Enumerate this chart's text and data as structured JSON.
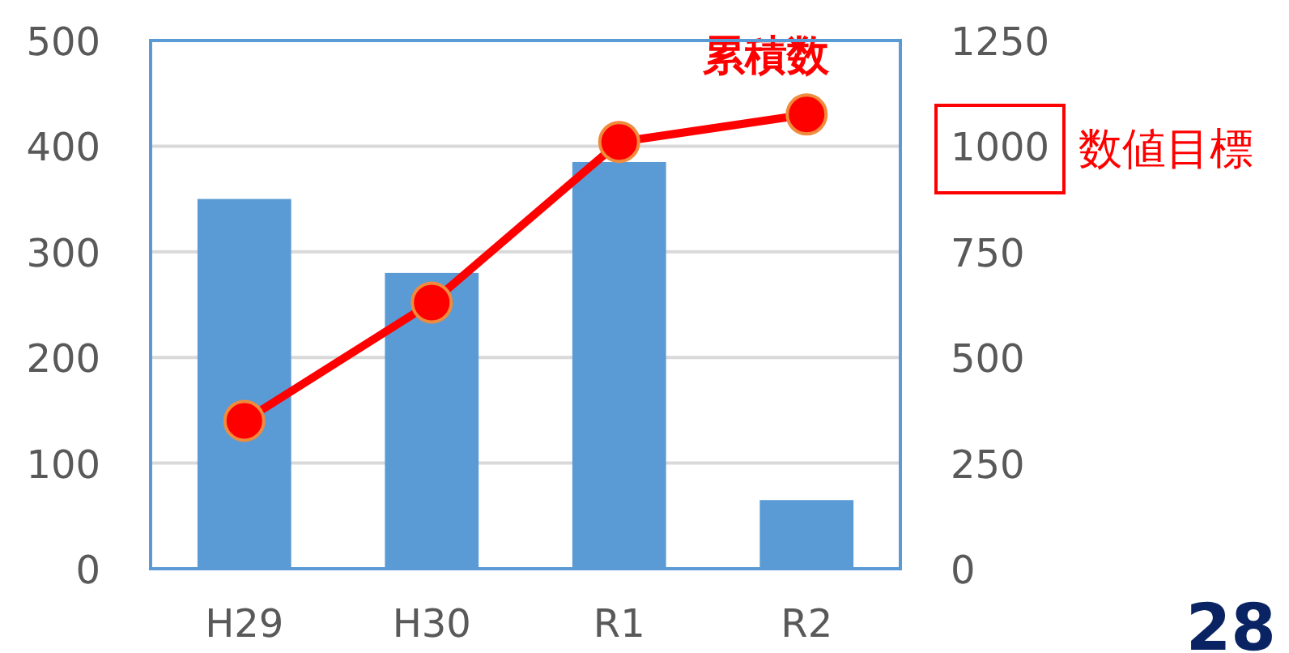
{
  "chart_data": {
    "type": "bar",
    "categories": [
      "H29",
      "H30",
      "R1",
      "R2"
    ],
    "series": [
      {
        "color": "#5b9bd5",
        "values": [
          350,
          280,
          385,
          65
        ]
      },
      {
        "type": "line",
        "name": "累積数",
        "axis": "y2",
        "color": "#ff0000",
        "values": [
          350,
          630,
          1010,
          1075
        ]
      }
    ],
    "marker": "circle",
    "ylim": [
      0,
      500
    ],
    "yticks": [
      0,
      100,
      200,
      300,
      400,
      500
    ],
    "y2lim": [
      0,
      1250
    ],
    "y2ticks": [
      0,
      250,
      500,
      750,
      1000,
      1250
    ],
    "grid": "y",
    "annotations": [
      "数値目標",
      "28"
    ]
  }
}
